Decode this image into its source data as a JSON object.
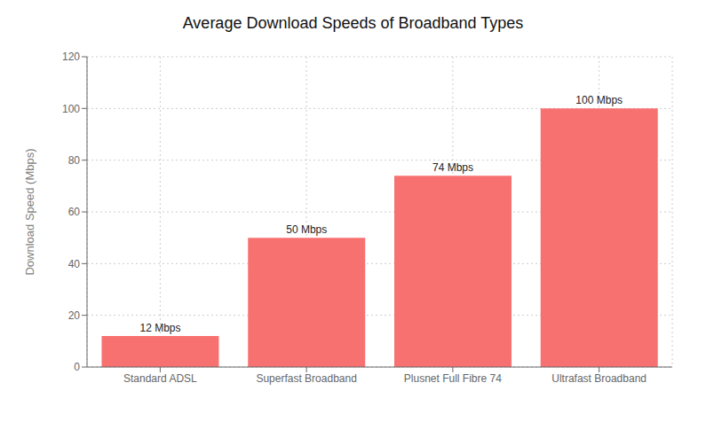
{
  "chart_data": {
    "type": "bar",
    "title": "Average Download Speeds of Broadband Types",
    "categories": [
      "Standard ADSL",
      "Superfast Broadband",
      "Plusnet Full Fibre 74",
      "Ultrafast Broadband"
    ],
    "values": [
      12,
      50,
      74,
      100
    ],
    "value_labels": [
      "12 Mbps",
      "50 Mbps",
      "74 Mbps",
      "100 Mbps"
    ],
    "data_labels": true,
    "color": "#F87171",
    "ylabel": "Download Speed (Mbps)",
    "ylim": [
      0,
      120
    ],
    "yticks": [
      0,
      20,
      40,
      60,
      80,
      100,
      120
    ],
    "grid": true
  }
}
